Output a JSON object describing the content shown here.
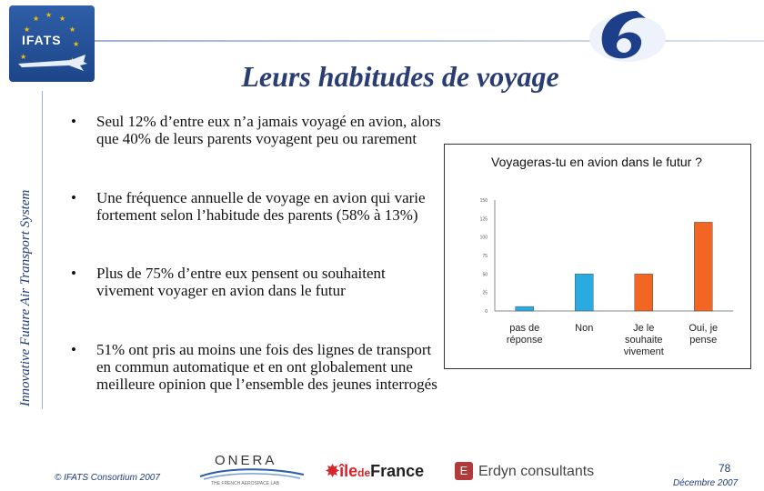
{
  "header": {
    "logo_text": "IFATS",
    "title": "Leurs habitudes de voyage",
    "side_label": "Innovative Future Air Transport System"
  },
  "bullets": [
    {
      "symbol": "•",
      "text": "Seul 12% d’entre eux n’a jamais voyagé en avion, alors que 40% de leurs parents voyagent peu ou rarement"
    },
    {
      "symbol": "•",
      "text": "Une fréquence annuelle de voyage en avion qui varie fortement selon l’habitude des parents (58% à 13%)"
    },
    {
      "symbol": "•",
      "text": "Plus de 75% d’entre eux pensent ou souhaitent vivement voyager en avion dans le futur"
    },
    {
      "symbol": "•",
      "text": "51% ont pris au moins une fois des lignes de transport en commun automatique et en ont globalement une meilleure opinion que l’ensemble des jeunes interrogés"
    }
  ],
  "chart_data": {
    "type": "bar",
    "title": "Voyageras-tu en avion dans le futur ?",
    "categories": [
      "pas de réponse",
      "Non",
      "Je le souhaite vivement",
      "Oui, je pense"
    ],
    "values": [
      6,
      50,
      50,
      120
    ],
    "colors": [
      "#29abe2",
      "#29abe2",
      "#f26522",
      "#f26522"
    ],
    "ylim": [
      0,
      150
    ],
    "yticks": [
      "150",
      "125",
      "100",
      "75",
      "50",
      "25",
      "0"
    ],
    "grid": false
  },
  "footer": {
    "copyright": "© IFATS Consortium 2007",
    "onera_name": "ONERA",
    "onera_tagline": "THE FRENCH AEROSPACE LAB",
    "iledf_ile": "île",
    "iledf_de": "de",
    "iledf_france": "France",
    "erdyn_icon": "E",
    "erdyn_name": "Erdyn consultants",
    "page_number": "78",
    "date": "Décembre 2007"
  }
}
